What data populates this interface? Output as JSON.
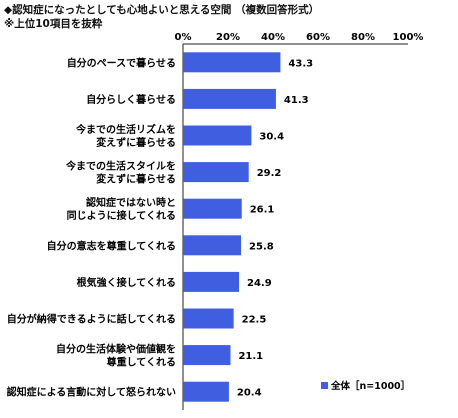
{
  "header": {
    "title": "◆認知症になったとしても心地よいと思える空間 （複数回答形式）",
    "subtitle": "※上位10項目を抜粋"
  },
  "chart_data": {
    "type": "bar",
    "orientation": "horizontal",
    "title": "◆認知症になったとしても心地よいと思える空間 （複数回答形式）",
    "subtitle": "※上位10項目を抜粋",
    "categories": [
      [
        "自分のペースで暮らせる"
      ],
      [
        "自分らしく暮らせる"
      ],
      [
        "今までの生活リズムを",
        "変えずに暮らせる"
      ],
      [
        "今までの生活スタイルを",
        "変えずに暮らせる"
      ],
      [
        "認知症ではない時と",
        "同じように接してくれる"
      ],
      [
        "自分の意志を尊重してくれる"
      ],
      [
        "根気強く接してくれる"
      ],
      [
        "自分が納得できるように話してくれる"
      ],
      [
        "自分の生活体験や価値観を",
        "尊重してくれる"
      ],
      [
        "認知症による言動に対して怒られない"
      ]
    ],
    "series": [
      {
        "name": "全体［n=1000］",
        "values": [
          43.3,
          41.3,
          30.4,
          29.2,
          26.1,
          25.8,
          24.9,
          22.5,
          21.1,
          20.4
        ]
      }
    ],
    "xlim": [
      0,
      100
    ],
    "xticks": [
      "0%",
      "20%",
      "40%",
      "60%",
      "80%",
      "100%"
    ],
    "xtick_values": [
      0,
      20,
      40,
      60,
      80,
      100
    ],
    "grid": false,
    "legend_position": "bottom-right",
    "bar_color": "#3f5fe0"
  }
}
